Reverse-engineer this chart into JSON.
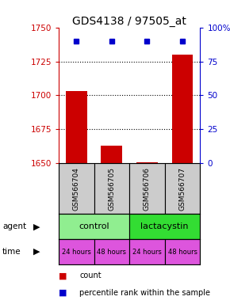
{
  "title": "GDS4138 / 97505_at",
  "samples": [
    "GSM566704",
    "GSM566705",
    "GSM566706",
    "GSM566707"
  ],
  "count_values": [
    1703,
    1663,
    1651,
    1730
  ],
  "percentile_values": [
    90,
    90,
    90,
    90
  ],
  "ylim_left": [
    1650,
    1750
  ],
  "yticks_left": [
    1650,
    1675,
    1700,
    1725,
    1750
  ],
  "ylim_right": [
    0,
    100
  ],
  "yticks_right": [
    0,
    25,
    50,
    75,
    100
  ],
  "ytick_labels_right": [
    "0",
    "25",
    "50",
    "75",
    "100%"
  ],
  "bar_color": "#cc0000",
  "dot_color": "#0000cc",
  "agent_labels": [
    "control",
    "lactacystin"
  ],
  "agent_bg_control": "#90ee90",
  "agent_bg_lacta": "#33dd33",
  "time_labels": [
    "24 hours",
    "48 hours",
    "24 hours",
    "48 hours"
  ],
  "time_color": "#dd55dd",
  "sample_bg": "#cccccc",
  "left_axis_color": "#cc0000",
  "right_axis_color": "#0000cc",
  "grid_color": "#000000",
  "title_fontsize": 10,
  "tick_fontsize": 7.5,
  "sample_fontsize": 6.5,
  "agent_fontsize": 8,
  "time_fontsize": 6,
  "legend_fontsize": 7
}
